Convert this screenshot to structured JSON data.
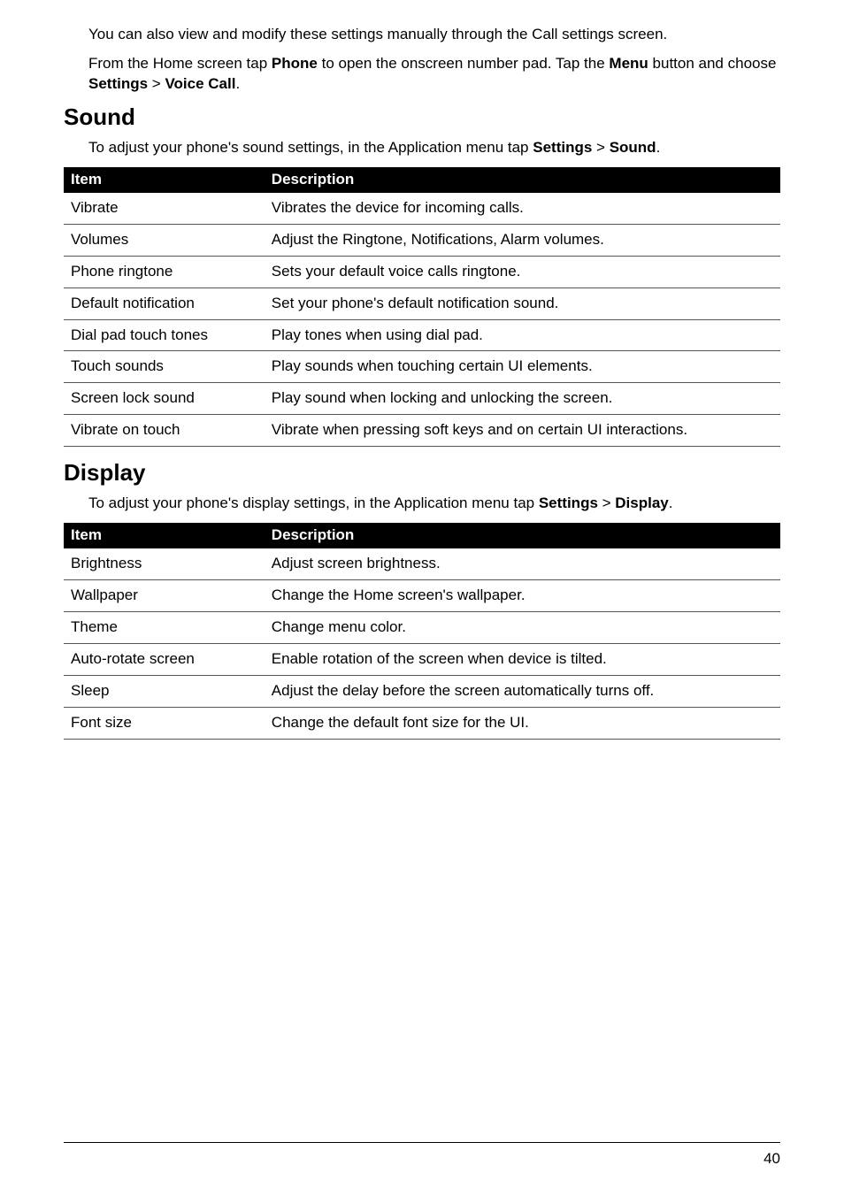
{
  "intro": {
    "p1_a": "You can also view and modify these settings manually through the Call settings screen.",
    "p2_a": "From the Home screen tap ",
    "p2_b": "Phone",
    "p2_c": " to open the onscreen number pad. Tap the ",
    "p2_d": "Menu",
    "p2_e": " button and choose ",
    "p2_f": "Settings",
    "p2_g": " > ",
    "p2_h": "Voice Call",
    "p2_i": "."
  },
  "sound": {
    "heading": "Sound",
    "intro_a": "To adjust your phone's sound settings, in the Application menu tap ",
    "intro_b": "Settings",
    "intro_c": " > ",
    "intro_d": "Sound",
    "intro_e": ".",
    "col_item": "Item",
    "col_desc": "Description",
    "rows": [
      {
        "item": "Vibrate",
        "desc": "Vibrates the device for incoming calls."
      },
      {
        "item": "Volumes",
        "desc": "Adjust the Ringtone, Notifications, Alarm volumes."
      },
      {
        "item": "Phone ringtone",
        "desc": "Sets your default voice calls ringtone."
      },
      {
        "item": "Default notification",
        "desc": "Set your phone's default notification sound."
      },
      {
        "item": "Dial pad touch tones",
        "desc": "Play tones when using dial pad."
      },
      {
        "item": "Touch sounds",
        "desc": "Play sounds when touching certain UI elements."
      },
      {
        "item": "Screen lock sound",
        "desc": "Play sound when locking and unlocking the screen."
      },
      {
        "item": "Vibrate on touch",
        "desc": "Vibrate when pressing soft keys and on certain UI interactions."
      }
    ]
  },
  "display": {
    "heading": "Display",
    "intro_a": "To adjust your phone's display settings, in the Application menu tap ",
    "intro_b": "Settings",
    "intro_c": " > ",
    "intro_d": "Display",
    "intro_e": ".",
    "col_item": "Item",
    "col_desc": "Description",
    "rows": [
      {
        "item": "Brightness",
        "desc": "Adjust screen brightness."
      },
      {
        "item": "Wallpaper",
        "desc": "Change the Home screen's wallpaper."
      },
      {
        "item": "Theme",
        "desc": "Change menu color."
      },
      {
        "item": "Auto-rotate screen",
        "desc": "Enable rotation of the screen when device is tilted."
      },
      {
        "item": "Sleep",
        "desc": "Adjust the delay before the screen automatically turns off."
      },
      {
        "item": "Font size",
        "desc": "Change the default font size for the UI."
      }
    ]
  },
  "page_number": "40"
}
